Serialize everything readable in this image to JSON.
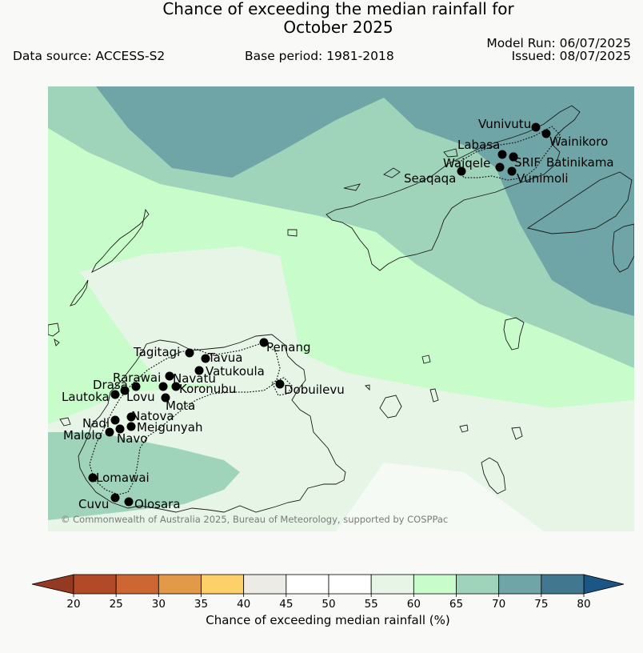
{
  "header": {
    "title_line1": "Chance of exceeding the median rainfall for",
    "title_line2": "October 2025",
    "data_source": "Data source: ACCESS-S2",
    "base_period": "Base period: 1981-2018",
    "model_run": "Model Run: 06/07/2025",
    "issued": "Issued: 08/07/2025"
  },
  "map": {
    "copyright": "© Commonwealth of Australia 2025, Bureau of Meteorology, supported by COSPPac",
    "stations": [
      {
        "name": "Vunivutu"
      },
      {
        "name": "Wainikoro"
      },
      {
        "name": "Labasa"
      },
      {
        "name": "Waiqele"
      },
      {
        "name": "SRIF"
      },
      {
        "name": "Batinikama"
      },
      {
        "name": "Seaqaqa"
      },
      {
        "name": "Vunimoli"
      },
      {
        "name": "Penang"
      },
      {
        "name": "Tagitagi"
      },
      {
        "name": "Tavua"
      },
      {
        "name": "Vatukoula"
      },
      {
        "name": "Rarawai"
      },
      {
        "name": "Navatu"
      },
      {
        "name": "Koronubu"
      },
      {
        "name": "Dobuilevu"
      },
      {
        "name": "Drasa"
      },
      {
        "name": "Lautoka"
      },
      {
        "name": "Lovu"
      },
      {
        "name": "Mota"
      },
      {
        "name": "Natova"
      },
      {
        "name": "Nadi"
      },
      {
        "name": "Meigunyah"
      },
      {
        "name": "Malolo"
      },
      {
        "name": "Navo"
      },
      {
        "name": "Lomawai"
      },
      {
        "name": "Cuvu"
      },
      {
        "name": "Olosara"
      }
    ]
  },
  "colorbar": {
    "label": "Chance of exceeding median rainfall (%)",
    "ticks": [
      "20",
      "25",
      "30",
      "35",
      "40",
      "45",
      "50",
      "55",
      "60",
      "65",
      "70",
      "75",
      "80"
    ],
    "colors": [
      "#b34a27",
      "#cc6733",
      "#e29a48",
      "#fdd069",
      "#ecebe6",
      "#ffffff",
      "#ffffff",
      "#e7f5e6",
      "#c9fccb",
      "#9fd4bb",
      "#6fa5a6",
      "#41788f"
    ],
    "under_color": "#943a22",
    "over_color": "#1b5686"
  }
}
